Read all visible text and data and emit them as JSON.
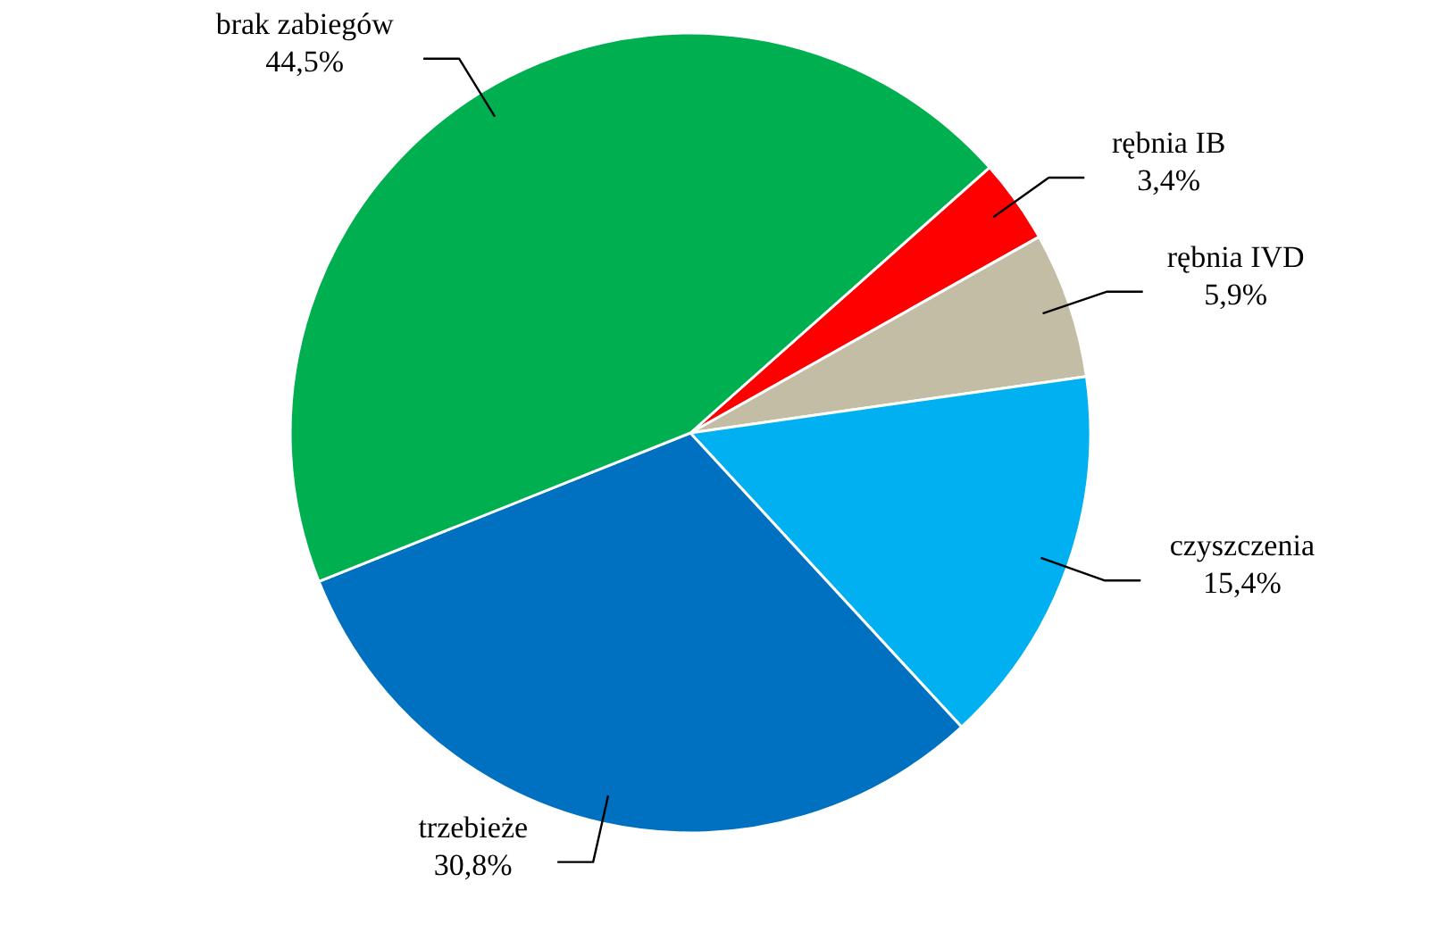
{
  "chart_data": {
    "type": "pie",
    "categories": [
      "rębnia IB",
      "rębnia IVD",
      "czyszczenia",
      "trzebieże",
      "brak zabiegów"
    ],
    "values": [
      3.4,
      5.9,
      15.4,
      30.8,
      44.5
    ],
    "colors": [
      "#ff0000",
      "#c4bda6",
      "#00b0f0",
      "#0070c0",
      "#00b050"
    ],
    "value_labels": [
      "3,4%",
      "5,9%",
      "15,4%",
      "30,8%",
      "44,5%"
    ]
  }
}
